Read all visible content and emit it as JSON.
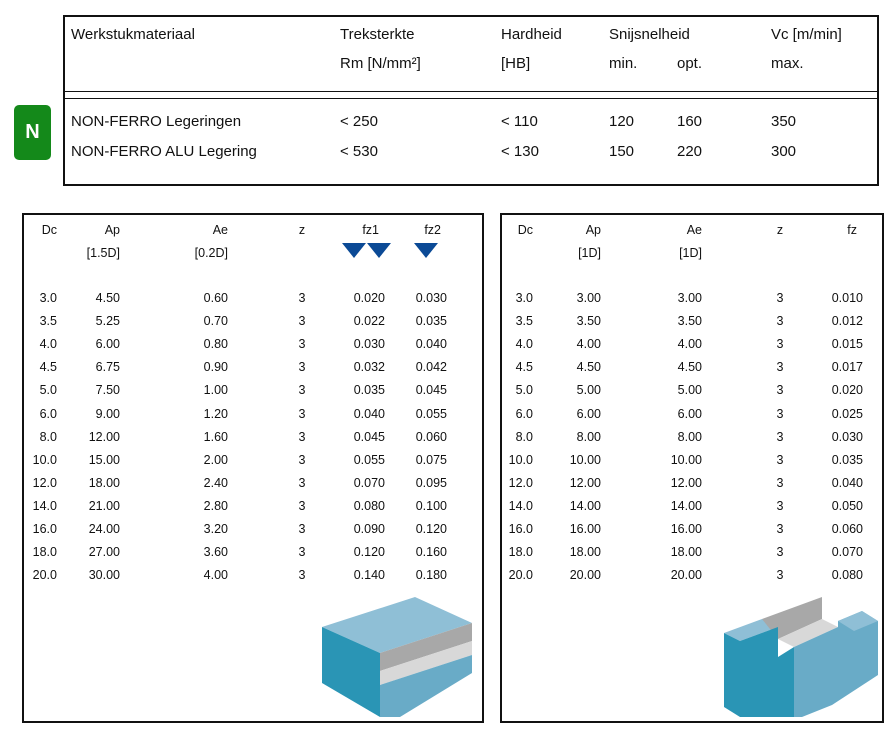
{
  "header": {
    "material": "Werkstukmateriaal",
    "tensile": "Treksterkte",
    "tensile_unit": "Rm [N/mm²]",
    "hardness": "Hardheid",
    "hardness_unit": "[HB]",
    "speed": "Snijsnelheid",
    "speed_min": "min.",
    "speed_opt": "opt.",
    "vc": "Vc [m/min]",
    "vc_max": "max."
  },
  "badge": "N",
  "badge_color": "#14891a",
  "materials": [
    {
      "name": "NON-FERRO Legeringen",
      "rm": "< 250",
      "hb": "< 110",
      "min": "120",
      "opt": "160",
      "max": "350"
    },
    {
      "name": "NON-FERRO ALU Legering",
      "rm": "< 530",
      "hb": "< 130",
      "min": "150",
      "opt": "220",
      "max": "300"
    }
  ],
  "left_table": {
    "headers": {
      "dc": "Dc",
      "ap": "Ap",
      "ap_sub": "[1.5D]",
      "ae": "Ae",
      "ae_sub": "[0.2D]",
      "z": "z",
      "fz1": "fz1",
      "fz2": "fz2"
    },
    "rows": [
      [
        "3.0",
        "4.50",
        "0.60",
        "3",
        "0.020",
        "0.030"
      ],
      [
        "3.5",
        "5.25",
        "0.70",
        "3",
        "0.022",
        "0.035"
      ],
      [
        "4.0",
        "6.00",
        "0.80",
        "3",
        "0.030",
        "0.040"
      ],
      [
        "4.5",
        "6.75",
        "0.90",
        "3",
        "0.032",
        "0.042"
      ],
      [
        "5.0",
        "7.50",
        "1.00",
        "3",
        "0.035",
        "0.045"
      ],
      [
        "6.0",
        "9.00",
        "1.20",
        "3",
        "0.040",
        "0.055"
      ],
      [
        "8.0",
        "12.00",
        "1.60",
        "3",
        "0.045",
        "0.060"
      ],
      [
        "10.0",
        "15.00",
        "2.00",
        "3",
        "0.055",
        "0.075"
      ],
      [
        "12.0",
        "18.00",
        "2.40",
        "3",
        "0.070",
        "0.095"
      ],
      [
        "14.0",
        "21.00",
        "2.80",
        "3",
        "0.080",
        "0.100"
      ],
      [
        "16.0",
        "24.00",
        "3.20",
        "3",
        "0.090",
        "0.120"
      ],
      [
        "18.0",
        "27.00",
        "3.60",
        "3",
        "0.120",
        "0.160"
      ],
      [
        "20.0",
        "30.00",
        "4.00",
        "3",
        "0.140",
        "0.180"
      ]
    ]
  },
  "right_table": {
    "headers": {
      "dc": "Dc",
      "ap": "Ap",
      "ap_sub": "[1D]",
      "ae": "Ae",
      "ae_sub": "[1D]",
      "z": "z",
      "fz": "fz"
    },
    "rows": [
      [
        "3.0",
        "3.00",
        "3.00",
        "3",
        "0.010"
      ],
      [
        "3.5",
        "3.50",
        "3.50",
        "3",
        "0.012"
      ],
      [
        "4.0",
        "4.00",
        "4.00",
        "3",
        "0.015"
      ],
      [
        "4.5",
        "4.50",
        "4.50",
        "3",
        "0.017"
      ],
      [
        "5.0",
        "5.00",
        "5.00",
        "3",
        "0.020"
      ],
      [
        "6.0",
        "6.00",
        "6.00",
        "3",
        "0.025"
      ],
      [
        "8.0",
        "8.00",
        "8.00",
        "3",
        "0.030"
      ],
      [
        "10.0",
        "10.00",
        "10.00",
        "3",
        "0.035"
      ],
      [
        "12.0",
        "12.00",
        "12.00",
        "3",
        "0.040"
      ],
      [
        "14.0",
        "14.00",
        "14.00",
        "3",
        "0.050"
      ],
      [
        "16.0",
        "16.00",
        "16.00",
        "3",
        "0.060"
      ],
      [
        "18.0",
        "18.00",
        "18.00",
        "3",
        "0.070"
      ],
      [
        "20.0",
        "20.00",
        "20.00",
        "3",
        "0.080"
      ]
    ]
  }
}
